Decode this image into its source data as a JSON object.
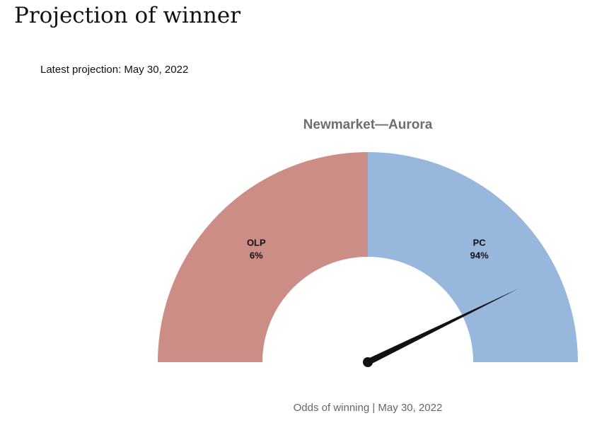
{
  "page": {
    "title": "Projection of winner",
    "latest_projection": "Latest projection: May 30, 2022"
  },
  "chart_data": {
    "type": "pie",
    "subtype": "half-donut gauge",
    "title": "Newmarket—Aurora",
    "caption": "Odds of winning | May 30, 2022",
    "slices": [
      {
        "label": "OLP",
        "value": 6,
        "value_label": "6%",
        "color": "#cd8d87"
      },
      {
        "label": "PC",
        "value": 94,
        "value_label": "94%",
        "color": "#97b7dd"
      }
    ],
    "gauge_range": [
      0,
      100
    ],
    "needle_value": 94,
    "needle_color": "#111111"
  }
}
